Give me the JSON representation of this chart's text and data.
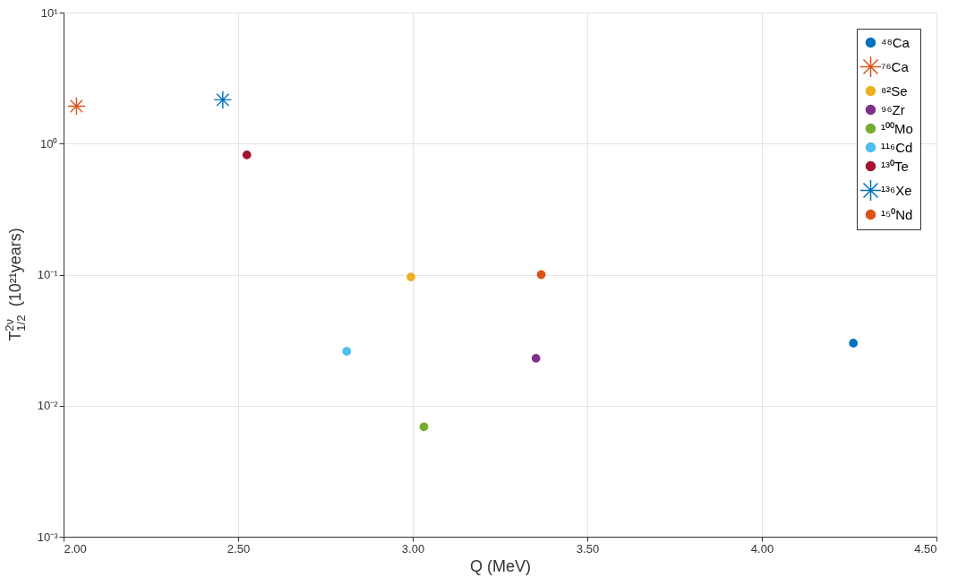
{
  "chart_data": {
    "type": "scatter",
    "xlabel": "Q (MeV)",
    "ylabel": "T$^{2ν}$$_{1/2}$ (10²¹years)",
    "xlim": [
      2.0,
      4.5
    ],
    "xticks": [
      {
        "value": 2.0,
        "label": "2.00"
      },
      {
        "value": 2.5,
        "label": "2.50"
      },
      {
        "value": 3.0,
        "label": "3.00"
      },
      {
        "value": 3.5,
        "label": "3.50"
      },
      {
        "value": 4.0,
        "label": "4.00"
      },
      {
        "value": 4.5,
        "label": "4.50"
      }
    ],
    "ylim": [
      0.001,
      10
    ],
    "yticks": [
      {
        "value": 0.001,
        "label": "10⁻³"
      },
      {
        "value": 0.01,
        "label": "10⁻²"
      },
      {
        "value": 0.1,
        "label": "10⁻¹"
      },
      {
        "value": 1,
        "label": "10⁰"
      },
      {
        "value": 10,
        "label": "10¹"
      }
    ],
    "log": "y",
    "grid": true,
    "legend": "top right",
    "series": [
      {
        "name": "⁴⁸Ca",
        "color": "#0072bd",
        "marker": "circle",
        "x": [
          4.262
        ],
        "values": [
          0.03
        ]
      },
      {
        "name": "⁷⁶Ca",
        "color": "#d95319",
        "marker": "cross",
        "x": [
          2.037
        ],
        "values": [
          1.93
        ]
      },
      {
        "name": "⁸²Se",
        "color": "#edb120",
        "marker": "circle",
        "x": [
          2.995
        ],
        "values": [
          0.096
        ]
      },
      {
        "name": "⁹⁶Zr",
        "color": "#7e2f8e",
        "marker": "circle",
        "x": [
          3.353
        ],
        "values": [
          0.023
        ]
      },
      {
        "name": "¹⁰⁰Mo",
        "color": "#77ac30",
        "marker": "circle",
        "x": [
          3.032
        ],
        "values": [
          0.0069
        ]
      },
      {
        "name": "¹¹⁶Cd",
        "color": "#4dbeee",
        "marker": "circle",
        "x": [
          2.811
        ],
        "values": [
          0.026
        ]
      },
      {
        "name": "¹³⁰Te",
        "color": "#a2142f",
        "marker": "circle",
        "x": [
          2.525
        ],
        "values": [
          0.82
        ]
      },
      {
        "name": "¹³⁶Xe",
        "color": "#0072bd",
        "marker": "cross",
        "x": [
          2.456
        ],
        "values": [
          2.16
        ]
      },
      {
        "name": "¹⁵⁰Nd",
        "color": "#d95319",
        "marker": "circle",
        "x": [
          3.368
        ],
        "values": [
          0.1
        ]
      }
    ]
  }
}
